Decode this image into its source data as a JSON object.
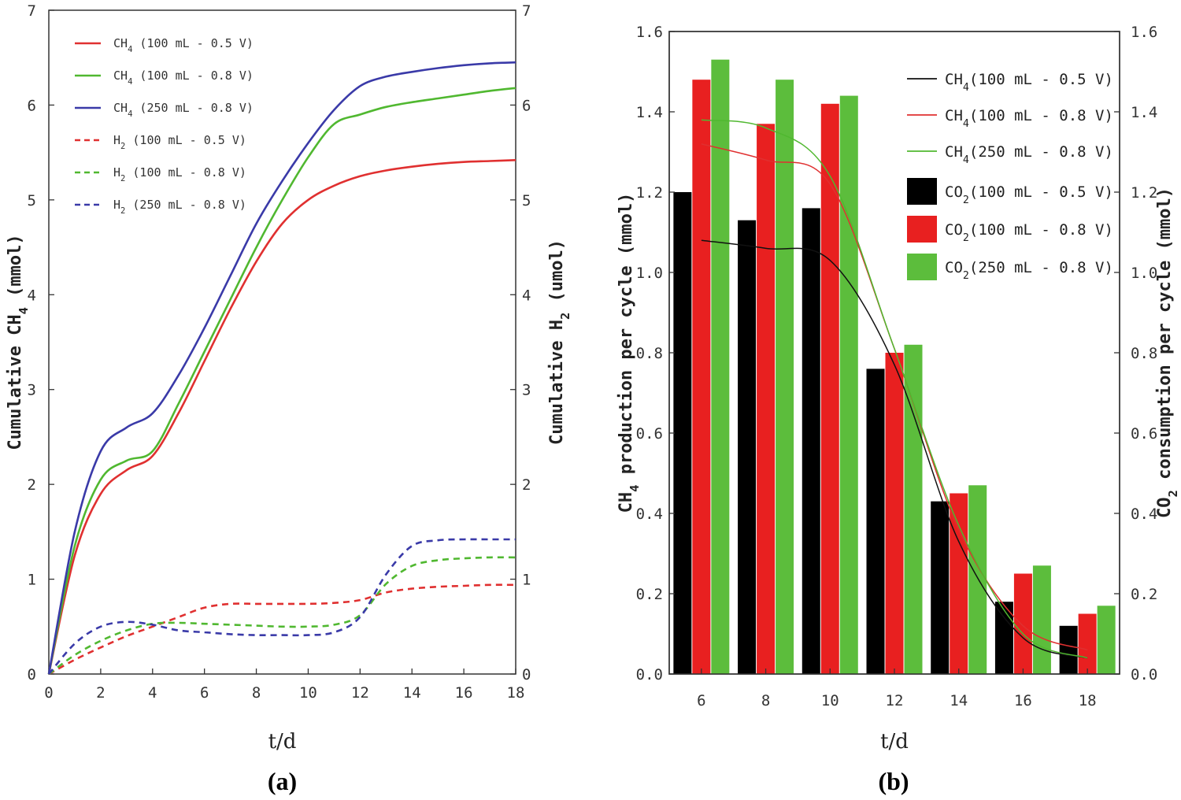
{
  "chart_data": [
    {
      "type": "line",
      "panel_label": "(a)",
      "xlabel": "t/d",
      "ylabel_left": "Cumulative CH4 (mmol)",
      "ylabel_left_parts": [
        "Cumulative CH",
        "4",
        " (mmol)"
      ],
      "ylabel_right": "Cumulative H2 (umol)",
      "ylabel_right_parts": [
        "Cumulative H",
        "2",
        " (umol)"
      ],
      "xlim": [
        0,
        18
      ],
      "ylim_left": [
        0,
        7
      ],
      "ylim_right": [
        0,
        7
      ],
      "xticks": [
        "0",
        "2",
        "4",
        "6",
        "8",
        "10",
        "12",
        "14",
        "16",
        "18"
      ],
      "yticks_left": [
        "0",
        "1",
        "2",
        "3",
        "4",
        "5",
        "6",
        "7"
      ],
      "yticks_right": [
        "0",
        "1",
        "2",
        "3",
        "4",
        "5",
        "6",
        "7"
      ],
      "legend_position": "top-left",
      "series": [
        {
          "name": "CH4 (100 mL - 0.5 V)",
          "gas": "CH",
          "sub": "4",
          "rest": " (100 mL - 0.5 V)",
          "color": "#e03030",
          "dashed": false,
          "x": [
            0,
            1,
            2,
            3,
            4,
            5,
            6,
            7,
            8,
            9,
            10,
            11,
            12,
            13,
            14,
            15,
            16,
            17,
            18
          ],
          "y": [
            0,
            1.25,
            1.9,
            2.15,
            2.3,
            2.75,
            3.3,
            3.85,
            4.35,
            4.75,
            5.0,
            5.15,
            5.25,
            5.31,
            5.35,
            5.38,
            5.4,
            5.41,
            5.42
          ]
        },
        {
          "name": "CH4 (100 mL - 0.8 V)",
          "gas": "CH",
          "sub": "4",
          "rest": " (100 mL - 0.8 V)",
          "color": "#50b830",
          "dashed": false,
          "x": [
            0,
            1,
            2,
            3,
            4,
            5,
            6,
            7,
            8,
            9,
            10,
            11,
            12,
            13,
            14,
            15,
            16,
            17,
            18
          ],
          "y": [
            0,
            1.35,
            2.05,
            2.25,
            2.35,
            2.85,
            3.4,
            3.95,
            4.5,
            5.0,
            5.45,
            5.8,
            5.9,
            5.98,
            6.03,
            6.07,
            6.11,
            6.15,
            6.18
          ]
        },
        {
          "name": "CH4 (250 mL - 0.8 V)",
          "gas": "CH",
          "sub": "4",
          "rest": " (250 mL - 0.8 V)",
          "color": "#3a3aa8",
          "dashed": false,
          "x": [
            0,
            1,
            2,
            3,
            4,
            5,
            6,
            7,
            8,
            9,
            10,
            11,
            12,
            13,
            14,
            15,
            16,
            17,
            18
          ],
          "y": [
            0,
            1.5,
            2.35,
            2.6,
            2.75,
            3.15,
            3.65,
            4.2,
            4.75,
            5.2,
            5.6,
            5.95,
            6.2,
            6.3,
            6.35,
            6.39,
            6.42,
            6.44,
            6.45
          ]
        },
        {
          "name": "H2 (100 mL - 0.5 V)",
          "gas": "H",
          "sub": "2",
          "rest": " (100 mL - 0.5 V)",
          "color": "#e03030",
          "dashed": true,
          "x": [
            0,
            1,
            2,
            3,
            4,
            5,
            6,
            7,
            8,
            9,
            10,
            11,
            12,
            13,
            14,
            15,
            16,
            17,
            18
          ],
          "y": [
            0,
            0.15,
            0.28,
            0.4,
            0.5,
            0.6,
            0.7,
            0.74,
            0.74,
            0.74,
            0.74,
            0.75,
            0.78,
            0.86,
            0.9,
            0.92,
            0.93,
            0.94,
            0.94
          ]
        },
        {
          "name": "H2 (100 mL - 0.8 V)",
          "gas": "H",
          "sub": "2",
          "rest": " (100 mL - 0.8 V)",
          "color": "#50b830",
          "dashed": true,
          "x": [
            0,
            1,
            2,
            3,
            4,
            5,
            6,
            7,
            8,
            9,
            10,
            11,
            12,
            13,
            14,
            15,
            16,
            17,
            18
          ],
          "y": [
            0,
            0.2,
            0.35,
            0.46,
            0.53,
            0.54,
            0.53,
            0.52,
            0.51,
            0.5,
            0.5,
            0.52,
            0.62,
            0.95,
            1.14,
            1.2,
            1.22,
            1.23,
            1.23
          ]
        },
        {
          "name": "H2 (250 mL - 0.8 V)",
          "gas": "H",
          "sub": "2",
          "rest": " (250 mL - 0.8 V)",
          "color": "#3a3aa8",
          "dashed": true,
          "x": [
            0,
            1,
            2,
            3,
            4,
            5,
            6,
            7,
            8,
            9,
            10,
            11,
            12,
            13,
            14,
            15,
            16,
            17,
            18
          ],
          "y": [
            0,
            0.32,
            0.5,
            0.55,
            0.52,
            0.46,
            0.44,
            0.42,
            0.41,
            0.41,
            0.41,
            0.44,
            0.6,
            1.05,
            1.35,
            1.41,
            1.42,
            1.42,
            1.42
          ]
        }
      ]
    },
    {
      "type": "bar",
      "panel_label": "(b)",
      "xlabel": "t/d",
      "ylabel_left": "CH4 production per cycle (mmol)",
      "ylabel_left_parts": [
        "CH",
        "4",
        " production per cycle (mmol)"
      ],
      "ylabel_right": "CO2 consumption per cycle (mmol)",
      "ylabel_right_parts": [
        "CO",
        "2",
        " consumption per cycle (mmol)"
      ],
      "categories": [
        "6",
        "8",
        "10",
        "12",
        "14",
        "16",
        "18"
      ],
      "ylim_left": [
        0,
        1.6
      ],
      "ylim_right": [
        0,
        1.6
      ],
      "yticks_left": [
        "0.0",
        "0.2",
        "0.4",
        "0.6",
        "0.8",
        "1.0",
        "1.2",
        "1.4",
        "1.6"
      ],
      "yticks_right": [
        "0.0",
        "0.2",
        "0.4",
        "0.6",
        "0.8",
        "1.0",
        "1.2",
        "1.4",
        "1.6"
      ],
      "legend_position": "top-right",
      "line_series": [
        {
          "name": "CH4(100 mL - 0.5 V)",
          "gas": "CH",
          "sub": "4",
          "rest": "(100 mL - 0.5 V)",
          "color": "#111111",
          "values": [
            1.08,
            1.06,
            1.03,
            0.77,
            0.33,
            0.09,
            0.04
          ]
        },
        {
          "name": "CH4(100 mL - 0.8 V)",
          "gas": "CH",
          "sub": "4",
          "rest": "(100 mL - 0.8 V)",
          "color": "#e03030",
          "values": [
            1.32,
            1.28,
            1.22,
            0.81,
            0.36,
            0.12,
            0.06
          ]
        },
        {
          "name": "CH4(250 mL - 0.8 V)",
          "gas": "CH",
          "sub": "4",
          "rest": "(250 mL - 0.8 V)",
          "color": "#50b830",
          "values": [
            1.38,
            1.36,
            1.24,
            0.81,
            0.37,
            0.1,
            0.04
          ]
        }
      ],
      "series": [
        {
          "name": "CO2(100 mL - 0.5 V)",
          "gas": "CO",
          "sub": "2",
          "rest": "(100 mL - 0.5 V)",
          "color": "#000000",
          "values": [
            1.2,
            1.13,
            1.16,
            0.76,
            0.43,
            0.18,
            0.12
          ]
        },
        {
          "name": "CO2(100 mL - 0.8 V)",
          "gas": "CO",
          "sub": "2",
          "rest": "(100 mL - 0.8 V)",
          "color": "#e82020",
          "values": [
            1.48,
            1.37,
            1.42,
            0.8,
            0.45,
            0.25,
            0.15
          ]
        },
        {
          "name": "CO2(250 mL - 0.8 V)",
          "gas": "CO",
          "sub": "2",
          "rest": "(250 mL - 0.8 V)",
          "color": "#5cbd3c",
          "values": [
            1.53,
            1.48,
            1.44,
            0.82,
            0.47,
            0.27,
            0.17
          ]
        }
      ]
    }
  ]
}
